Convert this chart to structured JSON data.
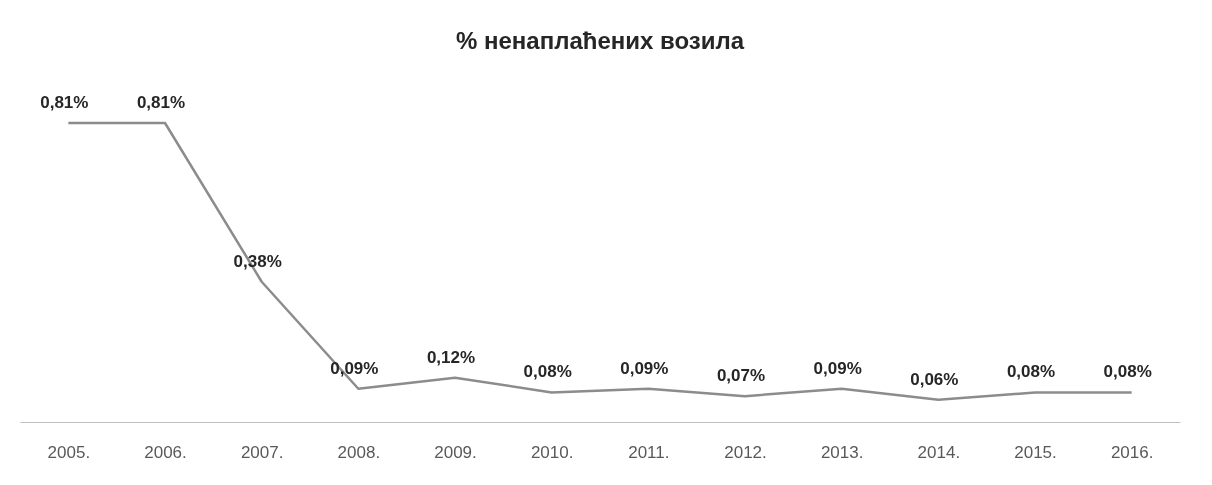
{
  "chart_data": {
    "type": "line",
    "title": "% ненаплаћених возила",
    "categories": [
      "2005.",
      "2006.",
      "2007.",
      "2008.",
      "2009.",
      "2010.",
      "2011.",
      "2012.",
      "2013.",
      "2014.",
      "2015.",
      "2016."
    ],
    "values": [
      0.81,
      0.81,
      0.38,
      0.09,
      0.12,
      0.08,
      0.09,
      0.07,
      0.09,
      0.06,
      0.08,
      0.08
    ],
    "value_labels": [
      "0,81%",
      "0,81%",
      "0,38%",
      "0,09%",
      "0,12%",
      "0,08%",
      "0,09%",
      "0,07%",
      "0,09%",
      "0,06%",
      "0,08%",
      "0,08%"
    ],
    "color": "#8c8c8c",
    "grid": false,
    "marker": "none"
  }
}
